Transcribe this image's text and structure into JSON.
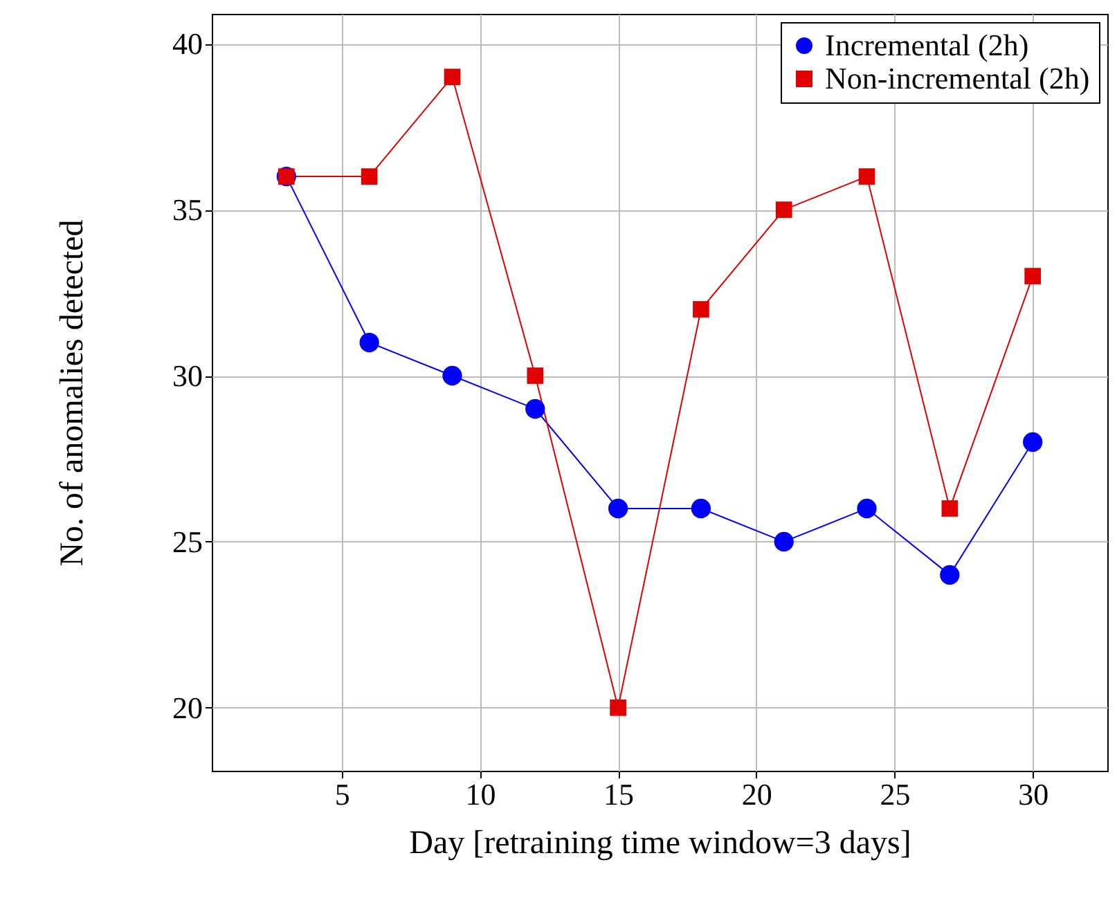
{
  "chart_data": {
    "type": "line",
    "xlabel": "Day [retraining time window=3 days]",
    "ylabel": "No. of anomalies detected",
    "x": [
      3,
      6,
      9,
      12,
      15,
      18,
      21,
      24,
      27,
      30
    ],
    "series": [
      {
        "name": "Incremental (2h)",
        "color": "#0000ff",
        "marker": "circle",
        "values": [
          36,
          31,
          30,
          29,
          26,
          26,
          25,
          26,
          24,
          28
        ]
      },
      {
        "name": "Non-incremental (2h)",
        "color": "#e00000",
        "marker": "square",
        "values": [
          36,
          36,
          39,
          30,
          20,
          32,
          35,
          36,
          26,
          33
        ]
      }
    ],
    "xlim": [
      0.3,
      32.7
    ],
    "ylim": [
      18.1,
      40.9
    ],
    "xticks": [
      5,
      10,
      15,
      20,
      25,
      30
    ],
    "yticks": [
      20,
      25,
      30,
      35,
      40
    ],
    "grid": true,
    "legend": "top right",
    "line_style": "solid"
  }
}
